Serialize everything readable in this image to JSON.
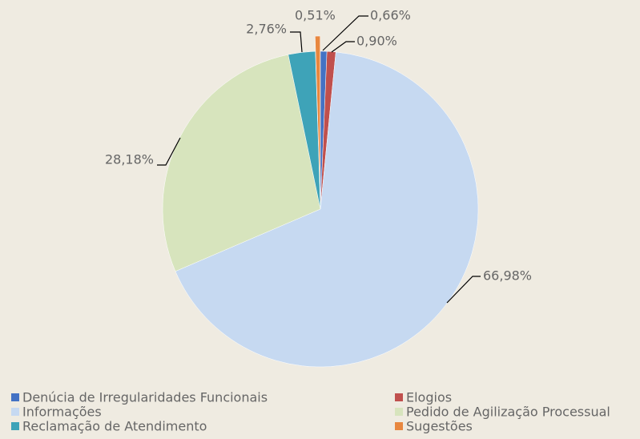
{
  "chart_data": {
    "type": "pie",
    "categories": [
      "Denúcia de Irregularidades Funcionais",
      "Elogios",
      "Informações",
      "Pedido de Agilização Processual",
      "Reclamação de Atendimento",
      "Sugestões"
    ],
    "values": [
      0.66,
      0.9,
      66.98,
      28.18,
      2.76,
      0.51
    ],
    "value_labels": [
      "0,66%",
      "0,90%",
      "66,98%",
      "28,18%",
      "2,76%",
      "0,51%"
    ],
    "colors": [
      "#4472c4",
      "#c0504d",
      "#c6d9f1",
      "#d7e4bd",
      "#3ea3b8",
      "#e8873f"
    ]
  }
}
